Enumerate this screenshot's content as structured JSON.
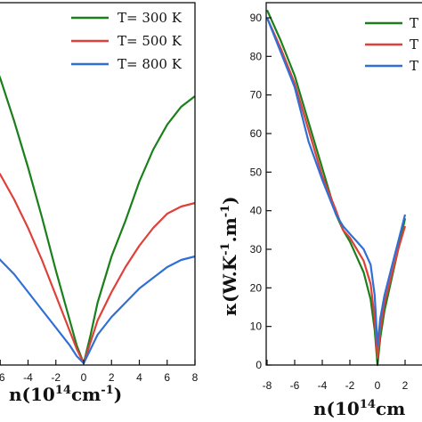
{
  "colors": {
    "green": "#1b7f1b",
    "red": "#e0403a",
    "blue": "#2f6fd6"
  },
  "chart_data": [
    {
      "type": "line",
      "xlabel": "n(10",
      "xlabel_sup": "14",
      "xlabel_tail": "cm",
      "xlabel_sup2": "-1",
      "xlabel_close": ")",
      "xlim": [
        -8,
        8
      ],
      "xticks": [
        -6,
        -4,
        -2,
        0,
        2,
        4,
        6,
        8
      ],
      "legend_position": "top-right",
      "series": [
        {
          "name": "T= 300 K",
          "color": "green",
          "x": [
            -8,
            -7.5,
            -7,
            -6.8,
            -6,
            -5,
            -4,
            -3,
            -2,
            -1,
            -0.5,
            0,
            0.5,
            1,
            2,
            3,
            4,
            5,
            6,
            7,
            8
          ],
          "y": [
            0.98,
            0.96,
            0.93,
            0.88,
            0.8,
            0.68,
            0.55,
            0.41,
            0.26,
            0.12,
            0.05,
            0.0,
            0.08,
            0.17,
            0.3,
            0.4,
            0.51,
            0.6,
            0.67,
            0.72,
            0.75
          ]
        },
        {
          "name": "T= 500 K",
          "color": "red",
          "x": [
            -8,
            -7,
            -6,
            -5,
            -4,
            -3,
            -2,
            -1,
            -0.5,
            0,
            0.5,
            1,
            2,
            3,
            4,
            5,
            6,
            7,
            8
          ],
          "y": [
            0.61,
            0.58,
            0.53,
            0.46,
            0.38,
            0.29,
            0.19,
            0.09,
            0.04,
            0.0,
            0.06,
            0.12,
            0.2,
            0.27,
            0.33,
            0.38,
            0.42,
            0.44,
            0.45
          ]
        },
        {
          "name": "T= 800 K",
          "color": "blue",
          "x": [
            -8,
            -7,
            -6,
            -5,
            -4,
            -3,
            -2,
            -1,
            -0.5,
            0,
            0.5,
            1,
            2,
            3,
            4,
            5,
            6,
            7,
            8
          ],
          "y": [
            0.36,
            0.33,
            0.29,
            0.25,
            0.2,
            0.15,
            0.1,
            0.05,
            0.02,
            0.0,
            0.04,
            0.08,
            0.13,
            0.17,
            0.21,
            0.24,
            0.27,
            0.29,
            0.3
          ]
        }
      ]
    },
    {
      "type": "line",
      "xlabel": "n(10",
      "xlabel_sup": "14",
      "xlabel_tail": "cm",
      "ylabel": "κ(W.K",
      "ylabel_sup1": "-1",
      "ylabel_mid": ".m",
      "ylabel_sup2": "-1",
      "ylabel_close": ")",
      "xlim": [
        -8,
        8
      ],
      "ylim": [
        0,
        92
      ],
      "xticks": [
        -8,
        -6,
        -4,
        -2,
        0,
        2
      ],
      "yticks": [
        0,
        10,
        20,
        30,
        40,
        50,
        60,
        70,
        80,
        90
      ],
      "legend_position": "top-right",
      "legend": [
        "T",
        "T",
        "T"
      ],
      "series": [
        {
          "color": "green",
          "x": [
            -8,
            -7,
            -6,
            -5,
            -4,
            -3,
            -2.5,
            -2,
            -1.5,
            -1,
            -0.5,
            -0.2,
            0,
            0.2,
            0.5,
            1,
            1.5,
            2
          ],
          "y": [
            92,
            84,
            75,
            63,
            51,
            39,
            35,
            32,
            28,
            24,
            17,
            9,
            0,
            7,
            14,
            22,
            30,
            38
          ]
        },
        {
          "color": "red",
          "x": [
            -8,
            -7,
            -6,
            -5,
            -4,
            -3,
            -2.5,
            -2,
            -1.5,
            -1,
            -0.5,
            -0.2,
            0,
            0.2,
            0.5,
            1,
            1.5,
            2
          ],
          "y": [
            90,
            82,
            73,
            61,
            49,
            40,
            35,
            33,
            30,
            27,
            21,
            12,
            2,
            9,
            16,
            23,
            30,
            36
          ]
        },
        {
          "color": "blue",
          "x": [
            -8,
            -7,
            -6,
            -5,
            -4,
            -3,
            -2.5,
            -2,
            -1.5,
            -1,
            -0.5,
            -0.2,
            0,
            0.2,
            0.5,
            1,
            1.5,
            2
          ],
          "y": [
            90,
            81,
            72,
            58,
            48,
            39,
            36,
            34,
            32,
            30,
            26,
            18,
            5,
            12,
            18,
            25,
            32,
            39
          ]
        }
      ]
    }
  ]
}
